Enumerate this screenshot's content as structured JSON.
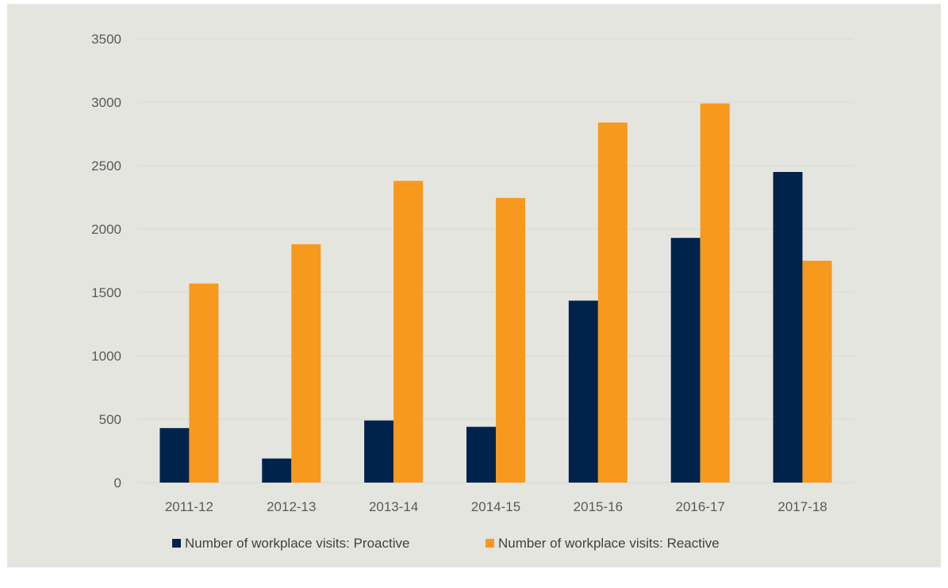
{
  "chart_data": {
    "type": "bar",
    "categories": [
      "2011-12",
      "2012-13",
      "2013-14",
      "2014-15",
      "2015-16",
      "2016-17",
      "2017-18"
    ],
    "series": [
      {
        "name": "Number of workplace visits: Proactive",
        "color": "#00234b",
        "values": [
          430,
          190,
          490,
          440,
          1435,
          1930,
          2450
        ]
      },
      {
        "name": "Number of workplace visits: Reactive",
        "color": "#f7991c",
        "values": [
          1570,
          1880,
          2380,
          2245,
          2840,
          2990,
          1750
        ]
      }
    ],
    "title": "",
    "xlabel": "",
    "ylabel": "",
    "ylim": [
      0,
      3500
    ],
    "yticks": [
      0,
      500,
      1000,
      1500,
      2000,
      2500,
      3000,
      3500
    ],
    "grid": true,
    "legend": "bottom",
    "background": "#e5e5e0",
    "gridline_color": "#d9d9d4"
  }
}
